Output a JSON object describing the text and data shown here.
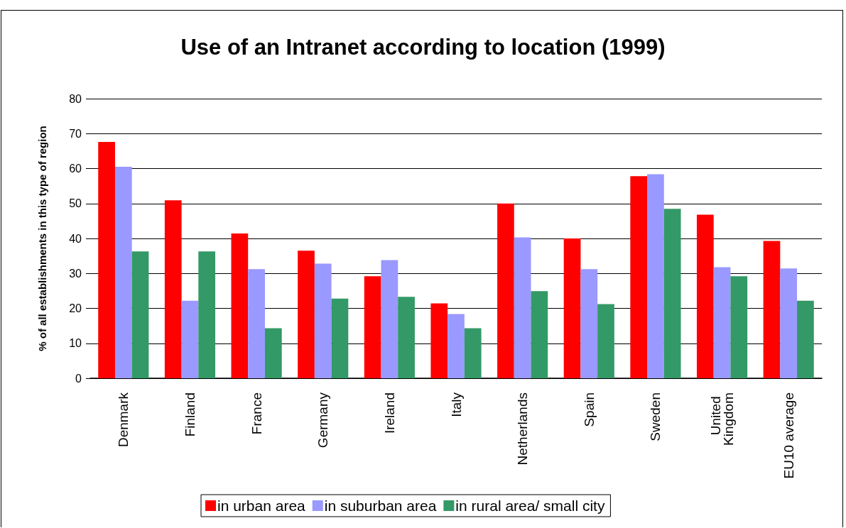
{
  "chart_data": {
    "type": "bar",
    "title": "Use of an Intranet according to location (1999)",
    "ylabel": "% of all establishments in this type of region",
    "categories": [
      "Denmark",
      "Finland",
      "France",
      "Germany",
      "Ireland",
      "Italy",
      "Netherlands",
      "Spain",
      "Sweden",
      "United Kingdom",
      "EU10 average"
    ],
    "series": [
      {
        "name": "in urban area",
        "color": "#ff0000",
        "values": [
          67.6,
          50.9,
          41.4,
          36.5,
          29.2,
          21.4,
          50.0,
          40.0,
          57.8,
          46.8,
          39.3
        ]
      },
      {
        "name": "in suburban area",
        "color": "#9999ff",
        "values": [
          60.5,
          22.2,
          31.2,
          32.8,
          33.8,
          18.4,
          40.3,
          31.2,
          58.4,
          31.8,
          31.4
        ]
      },
      {
        "name": "in rural area/ small city",
        "color": "#339966",
        "values": [
          36.3,
          36.3,
          14.3,
          22.8,
          23.3,
          14.3,
          24.9,
          21.2,
          48.5,
          29.2,
          22.2
        ]
      }
    ],
    "ylim": [
      0,
      80
    ],
    "yticks": [
      0,
      10,
      20,
      30,
      40,
      50,
      60,
      70,
      80
    ],
    "grid": "y",
    "legend": "bottom"
  }
}
